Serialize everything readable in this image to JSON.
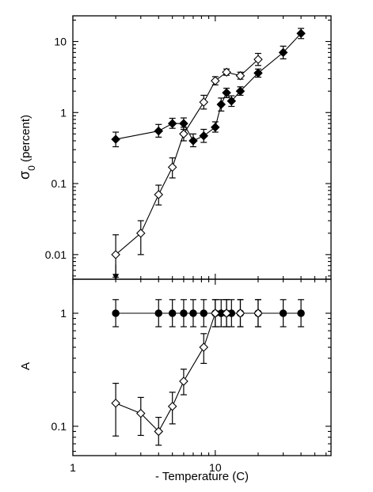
{
  "chart_data": [
    {
      "type": "scatter",
      "panel": "top",
      "ylabel": "σ0 (percent)",
      "ylabel_main": "σ",
      "ylabel_sub": "0",
      "ylabel_rest": " (percent)",
      "xscale": "log",
      "yscale": "log",
      "xlim": [
        1,
        65
      ],
      "ylim": [
        0.0045,
        23
      ],
      "yticks": [
        0.01,
        0.1,
        1,
        10
      ],
      "ytick_labels": [
        "0.01",
        "0.1",
        "1",
        "10"
      ],
      "series": [
        {
          "marker": "filled-diamond",
          "points": [
            {
              "x": 2,
              "y": 0.42,
              "lo": 0.33,
              "hi": 0.53
            },
            {
              "x": 4,
              "y": 0.55,
              "lo": 0.45,
              "hi": 0.68
            },
            {
              "x": 5,
              "y": 0.7,
              "lo": 0.6,
              "hi": 0.83
            },
            {
              "x": 6,
              "y": 0.7,
              "lo": 0.58,
              "hi": 0.84
            },
            {
              "x": 7,
              "y": 0.4,
              "lo": 0.33,
              "hi": 0.5
            },
            {
              "x": 8.3,
              "y": 0.47,
              "lo": 0.38,
              "hi": 0.58
            },
            {
              "x": 10,
              "y": 0.62,
              "lo": 0.53,
              "hi": 0.74
            },
            {
              "x": 11,
              "y": 1.3,
              "lo": 1.05,
              "hi": 1.6
            },
            {
              "x": 12,
              "y": 1.9,
              "lo": 1.62,
              "hi": 2.2
            },
            {
              "x": 13,
              "y": 1.45,
              "lo": 1.22,
              "hi": 1.72
            },
            {
              "x": 15,
              "y": 2.0,
              "lo": 1.75,
              "hi": 2.3
            },
            {
              "x": 20,
              "y": 3.6,
              "lo": 3.15,
              "hi": 4.1
            },
            {
              "x": 30,
              "y": 7.0,
              "lo": 5.7,
              "hi": 8.6
            },
            {
              "x": 40,
              "y": 13.0,
              "lo": 11.0,
              "hi": 15.3
            }
          ]
        },
        {
          "marker": "open-diamond",
          "points": [
            {
              "x": 2,
              "y": 0.01,
              "lo": 0.0048,
              "hi": 0.019
            },
            {
              "x": 3,
              "y": 0.02,
              "lo": 0.01,
              "hi": 0.03
            },
            {
              "x": 4,
              "y": 0.07,
              "lo": 0.05,
              "hi": 0.095
            },
            {
              "x": 5,
              "y": 0.17,
              "lo": 0.12,
              "hi": 0.23
            },
            {
              "x": 6,
              "y": 0.5,
              "lo": 0.4,
              "hi": 0.62
            },
            {
              "x": 8.3,
              "y": 1.4,
              "lo": 1.12,
              "hi": 1.75
            },
            {
              "x": 10,
              "y": 2.8,
              "lo": 2.45,
              "hi": 3.2
            },
            {
              "x": 12,
              "y": 3.7,
              "lo": 3.35,
              "hi": 4.1
            },
            {
              "x": 15,
              "y": 3.3,
              "lo": 2.95,
              "hi": 3.7
            },
            {
              "x": 20,
              "y": 5.6,
              "lo": 4.6,
              "hi": 6.8
            }
          ]
        }
      ],
      "annotations": [
        {
          "type": "arrow-down",
          "x": 2,
          "y_from": 0.0072,
          "y_to": 0.0047
        }
      ]
    },
    {
      "type": "scatter",
      "panel": "bottom",
      "xlabel": "- Temperature (C)",
      "ylabel": "A",
      "xscale": "log",
      "yscale": "log",
      "xlim": [
        1,
        65
      ],
      "ylim": [
        0.055,
        2.0
      ],
      "xticks": [
        1,
        10
      ],
      "xtick_labels": [
        "1",
        "10"
      ],
      "yticks": [
        0.1,
        1
      ],
      "ytick_labels": [
        "0.1",
        "1"
      ],
      "series": [
        {
          "marker": "filled-circle",
          "points": [
            {
              "x": 2,
              "y": 1.0,
              "lo": 0.76,
              "hi": 1.32
            },
            {
              "x": 4,
              "y": 1.0,
              "lo": 0.76,
              "hi": 1.32
            },
            {
              "x": 5,
              "y": 1.0,
              "lo": 0.76,
              "hi": 1.32
            },
            {
              "x": 6,
              "y": 1.0,
              "lo": 0.76,
              "hi": 1.32
            },
            {
              "x": 7,
              "y": 1.0,
              "lo": 0.76,
              "hi": 1.32
            },
            {
              "x": 8.3,
              "y": 1.0,
              "lo": 0.76,
              "hi": 1.32
            },
            {
              "x": 10,
              "y": 1.0,
              "lo": 0.76,
              "hi": 1.32
            },
            {
              "x": 11,
              "y": 1.0,
              "lo": 0.76,
              "hi": 1.32
            },
            {
              "x": 12,
              "y": 1.0,
              "lo": 0.76,
              "hi": 1.32
            },
            {
              "x": 13,
              "y": 1.0,
              "lo": 0.76,
              "hi": 1.32
            },
            {
              "x": 15,
              "y": 1.0,
              "lo": 0.76,
              "hi": 1.32
            },
            {
              "x": 20,
              "y": 1.0,
              "lo": 0.76,
              "hi": 1.32
            },
            {
              "x": 30,
              "y": 1.0,
              "lo": 0.76,
              "hi": 1.32
            },
            {
              "x": 40,
              "y": 1.0,
              "lo": 0.76,
              "hi": 1.32
            }
          ]
        },
        {
          "marker": "open-diamond",
          "points": [
            {
              "x": 2,
              "y": 0.16,
              "lo": 0.082,
              "hi": 0.24
            },
            {
              "x": 3,
              "y": 0.13,
              "lo": 0.083,
              "hi": 0.18
            },
            {
              "x": 4,
              "y": 0.09,
              "lo": 0.068,
              "hi": 0.12
            },
            {
              "x": 5,
              "y": 0.15,
              "lo": 0.105,
              "hi": 0.2
            },
            {
              "x": 6,
              "y": 0.25,
              "lo": 0.19,
              "hi": 0.32
            },
            {
              "x": 8.3,
              "y": 0.5,
              "lo": 0.36,
              "hi": 0.66
            },
            {
              "x": 10,
              "y": 1.0,
              "lo": 0.76,
              "hi": 1.32
            },
            {
              "x": 12,
              "y": 1.0,
              "lo": 0.76,
              "hi": 1.32
            },
            {
              "x": 15,
              "y": 1.0,
              "lo": 0.76,
              "hi": 1.32
            },
            {
              "x": 20,
              "y": 1.0,
              "lo": 0.76,
              "hi": 1.32
            }
          ]
        }
      ]
    }
  ]
}
